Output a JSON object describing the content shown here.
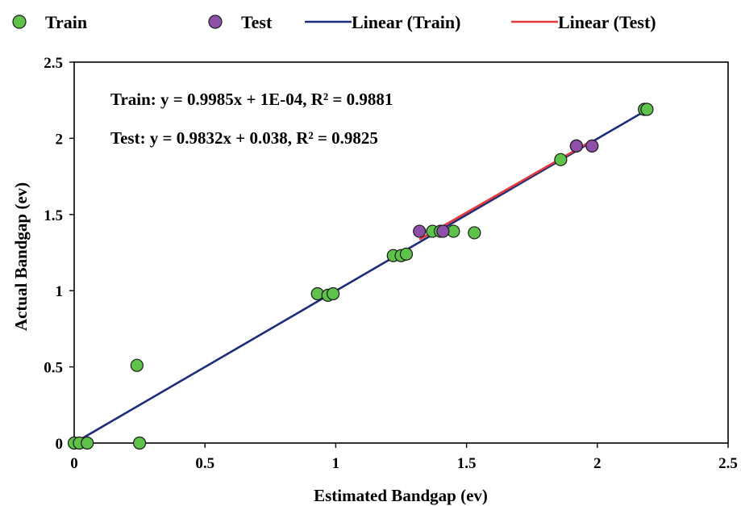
{
  "chart_data": {
    "type": "scatter",
    "xlabel": "Estimated Bandgap (ev)",
    "ylabel": "Actual Bandgap (ev)",
    "xlim": [
      0,
      2.5
    ],
    "ylim": [
      0,
      2.5
    ],
    "xticks": [
      "0",
      "0.5",
      "1",
      "1.5",
      "2",
      "2.5"
    ],
    "yticks": [
      "0",
      "0.5",
      "1",
      "1.5",
      "2",
      "2.5"
    ],
    "grid": false,
    "legend_position": "top",
    "annotations": [
      "Train: y = 0.9985x + 1E-04, R² = 0.9881",
      "Test: y = 0.9832x + 0.038, R² = 0.9825"
    ],
    "series": [
      {
        "name": "Train",
        "kind": "points",
        "color": "#5fc24a",
        "x": [
          0.0,
          0.02,
          0.05,
          0.24,
          0.25,
          0.93,
          0.97,
          0.99,
          1.22,
          1.25,
          1.27,
          1.37,
          1.4,
          1.45,
          1.53,
          1.86,
          1.92,
          2.18,
          2.19
        ],
        "y": [
          0.0,
          0.0,
          0.0,
          0.51,
          0.0,
          0.98,
          0.97,
          0.98,
          1.23,
          1.23,
          1.24,
          1.39,
          1.39,
          1.39,
          1.38,
          1.86,
          1.95,
          2.19,
          2.19
        ]
      },
      {
        "name": "Test",
        "kind": "points",
        "color": "#8e4fa8",
        "x": [
          1.32,
          1.41,
          1.92,
          1.98
        ],
        "y": [
          1.39,
          1.39,
          1.95,
          1.95
        ]
      },
      {
        "name": "Linear (Train)",
        "kind": "line",
        "color": "#1f2c7a",
        "slope": 0.9985,
        "intercept": 0.0001,
        "x_range": [
          0,
          2.19
        ]
      },
      {
        "name": "Linear (Test)",
        "kind": "line",
        "color": "#e33b3b",
        "slope": 0.9832,
        "intercept": 0.038,
        "x_range": [
          1.32,
          1.98
        ]
      }
    ]
  }
}
